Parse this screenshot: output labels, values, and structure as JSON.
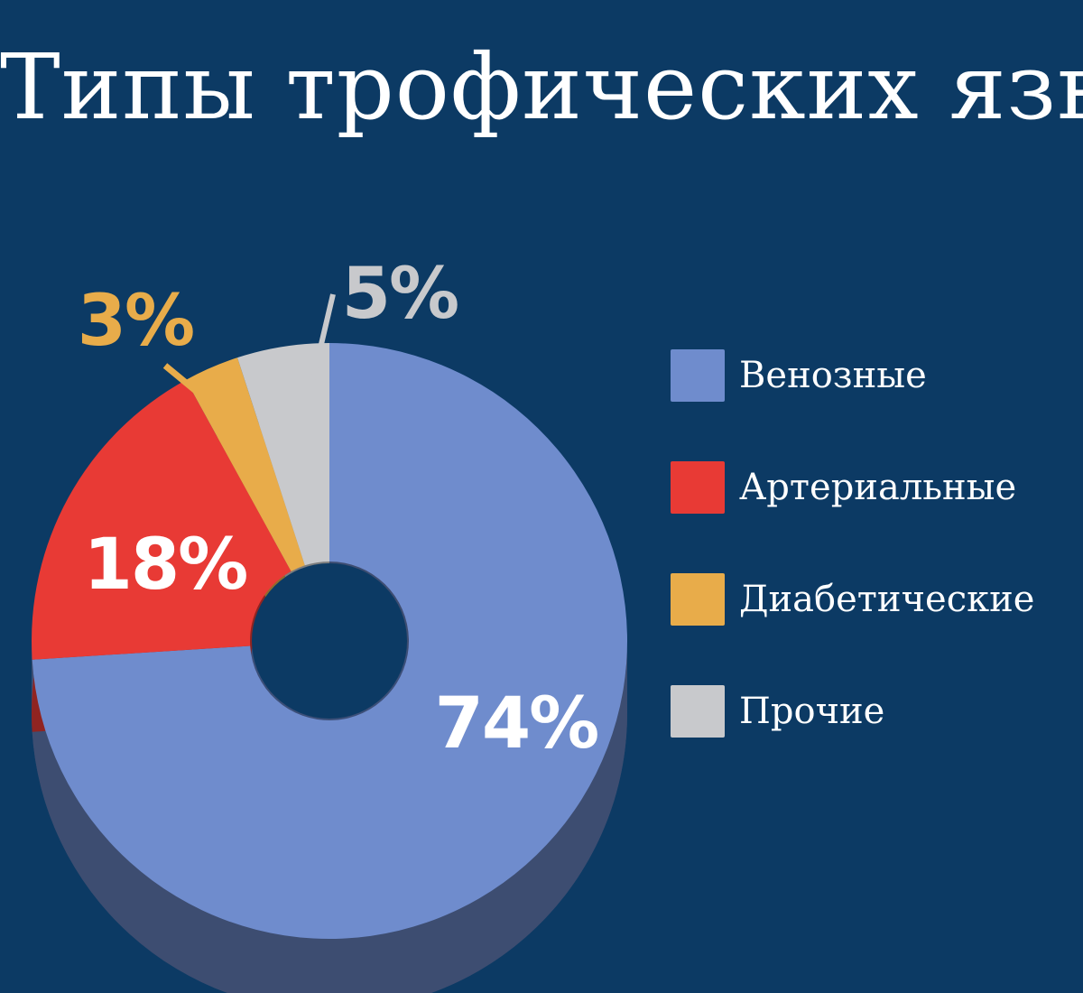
{
  "title": "Типы трофических язв",
  "chart_data": {
    "type": "pie",
    "style": "3d-donut",
    "legend_position": "right",
    "categories": [
      "Венозные",
      "Артериальные",
      "Диабетические",
      "Прочие"
    ],
    "values": [
      74,
      18,
      3,
      5
    ],
    "data_labels": [
      "74%",
      "18%",
      "3%",
      "5%"
    ],
    "colors": [
      "#6f8ccd",
      "#e83a35",
      "#e8ac4a",
      "#c8c9cc"
    ],
    "label_colors": [
      "#ffffff",
      "#ffffff",
      "#e8ac4a",
      "#c8c9cc"
    ]
  }
}
